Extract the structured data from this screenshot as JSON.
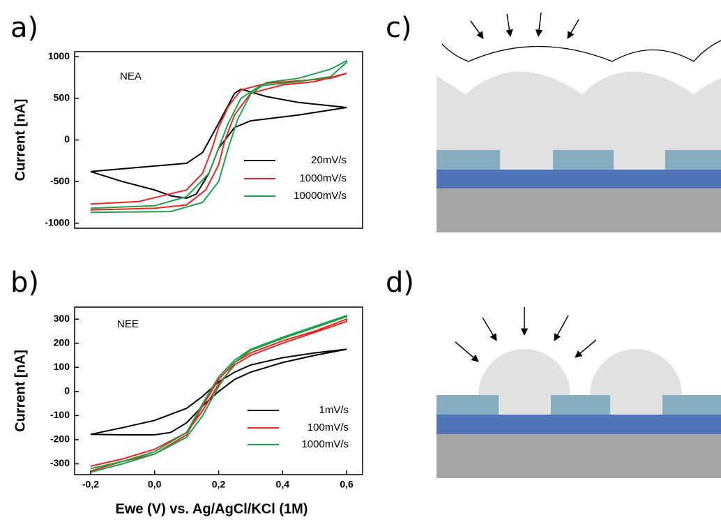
{
  "chart_data": [
    {
      "type": "line",
      "panel_label": "a)",
      "annotation": "NEA",
      "ylabel": "Current [nA]",
      "xlim": [
        -0.25,
        0.65
      ],
      "ylim": [
        -1060,
        1060
      ],
      "yticks": [
        1000,
        500,
        0,
        -500,
        -1000
      ],
      "series": [
        {
          "name": "20mV/s",
          "color": "#000000",
          "x": [
            -0.2,
            0.1,
            0.15,
            0.2,
            0.25,
            0.27,
            0.35,
            0.45,
            0.6,
            0.45,
            0.3,
            0.25,
            0.2,
            0.17,
            0.13,
            0.1,
            0.05,
            0,
            -0.1,
            -0.2
          ],
          "values": [
            -380,
            -280,
            -150,
            200,
            560,
            610,
            520,
            450,
            390,
            300,
            230,
            150,
            -100,
            -400,
            -650,
            -700,
            -670,
            -600,
            -500,
            -380
          ]
        },
        {
          "name": "1000mV/s",
          "color": "#e8251f",
          "x": [
            -0.2,
            -0.05,
            0.1,
            0.15,
            0.18,
            0.2,
            0.23,
            0.27,
            0.35,
            0.45,
            0.55,
            0.6,
            0.5,
            0.4,
            0.3,
            0.25,
            0.22,
            0.2,
            0.16,
            0.1,
            0,
            -0.2
          ],
          "values": [
            -770,
            -740,
            -600,
            -400,
            -100,
            150,
            400,
            600,
            680,
            710,
            740,
            800,
            700,
            660,
            560,
            300,
            0,
            -300,
            -600,
            -780,
            -820,
            -840
          ]
        },
        {
          "name": "10000mV/s",
          "color": "#1aa34a",
          "x": [
            -0.2,
            0,
            0.1,
            0.17,
            0.2,
            0.23,
            0.27,
            0.33,
            0.45,
            0.55,
            0.6,
            0.6,
            0.55,
            0.45,
            0.35,
            0.3,
            0.26,
            0.23,
            0.2,
            0.15,
            0.05,
            -0.2
          ],
          "values": [
            -820,
            -790,
            -680,
            -400,
            -100,
            200,
            500,
            650,
            700,
            760,
            930,
            950,
            850,
            740,
            690,
            550,
            250,
            -100,
            -500,
            -750,
            -860,
            -870
          ]
        }
      ]
    },
    {
      "type": "line",
      "panel_label": "b)",
      "annotation": "NEE",
      "ylabel": "Current [nA]",
      "xlabel": "Ewe (V) vs. Ag/AgCl/KCl (1M)",
      "xlim": [
        -0.25,
        0.65
      ],
      "ylim": [
        -345,
        350
      ],
      "xticks": [
        {
          "value": -0.2,
          "label": "-0,2"
        },
        {
          "value": 0,
          "label": "0,0"
        },
        {
          "value": 0.2,
          "label": "0,2"
        },
        {
          "value": 0.4,
          "label": "0,4"
        },
        {
          "value": 0.6,
          "label": "0,6"
        }
      ],
      "yticks": [
        300,
        200,
        100,
        0,
        -100,
        -200,
        -300
      ],
      "series": [
        {
          "name": "1mV/s",
          "color": "#000000",
          "x": [
            -0.2,
            -0.1,
            0,
            0.1,
            0.15,
            0.2,
            0.25,
            0.3,
            0.4,
            0.5,
            0.6,
            0.5,
            0.4,
            0.3,
            0.25,
            0.2,
            0.15,
            0.1,
            0.05,
            0,
            -0.1,
            -0.2
          ],
          "values": [
            -178,
            -150,
            -120,
            -70,
            -20,
            40,
            80,
            110,
            140,
            160,
            175,
            150,
            120,
            80,
            50,
            0,
            -60,
            -130,
            -170,
            -180,
            -180,
            -178
          ]
        },
        {
          "name": "100mV/s",
          "color": "#e8251f",
          "x": [
            -0.2,
            -0.1,
            0,
            0.1,
            0.15,
            0.2,
            0.25,
            0.3,
            0.4,
            0.5,
            0.6,
            0.6,
            0.5,
            0.4,
            0.3,
            0.25,
            0.2,
            0.15,
            0.1,
            0,
            -0.1,
            -0.2
          ],
          "values": [
            -310,
            -280,
            -240,
            -170,
            -80,
            30,
            110,
            150,
            200,
            245,
            290,
            300,
            250,
            210,
            160,
            120,
            50,
            -60,
            -180,
            -260,
            -290,
            -330
          ]
        },
        {
          "name": "1000mV/s",
          "color": "#1aa34a",
          "x": [
            -0.2,
            -0.1,
            0,
            0.1,
            0.15,
            0.2,
            0.25,
            0.3,
            0.4,
            0.5,
            0.6,
            0.6,
            0.5,
            0.4,
            0.3,
            0.25,
            0.2,
            0.15,
            0.1,
            0,
            -0.1,
            -0.2
          ],
          "values": [
            -335,
            -300,
            -260,
            -190,
            -100,
            20,
            120,
            170,
            220,
            265,
            310,
            315,
            270,
            225,
            175,
            130,
            60,
            -50,
            -170,
            -250,
            -290,
            -320
          ]
        }
      ]
    }
  ],
  "diagrams": [
    {
      "panel_label": "c)"
    },
    {
      "panel_label": "d)"
    }
  ]
}
